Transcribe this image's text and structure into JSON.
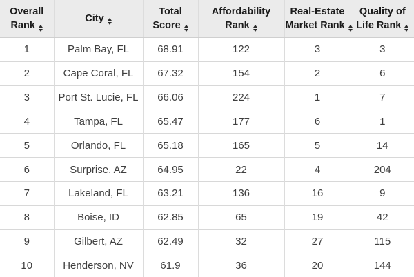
{
  "table": {
    "columns": [
      {
        "id": "overall-rank",
        "label": "Overall Rank",
        "lines": [
          "Overall",
          "Rank"
        ],
        "sortable": true
      },
      {
        "id": "city",
        "label": "City",
        "lines": [
          "City"
        ],
        "sortable": true
      },
      {
        "id": "total-score",
        "label": "Total Score",
        "lines": [
          "Total",
          "Score"
        ],
        "sortable": true
      },
      {
        "id": "affordability-rank",
        "label": "Affordability Rank",
        "lines": [
          "Affordability",
          "Rank"
        ],
        "sortable": true
      },
      {
        "id": "real-estate-market-rank",
        "label": "Real-Estate Market Rank",
        "lines": [
          "Real-Estate",
          "Market Rank"
        ],
        "sortable": true
      },
      {
        "id": "quality-of-life-rank",
        "label": "Quality of Life Rank",
        "lines": [
          "Quality of",
          "Life Rank"
        ],
        "sortable": true
      }
    ],
    "rows": [
      [
        "1",
        "Palm Bay, FL",
        "68.91",
        "122",
        "3",
        "3"
      ],
      [
        "2",
        "Cape Coral, FL",
        "67.32",
        "154",
        "2",
        "6"
      ],
      [
        "3",
        "Port St. Lucie, FL",
        "66.06",
        "224",
        "1",
        "7"
      ],
      [
        "4",
        "Tampa, FL",
        "65.47",
        "177",
        "6",
        "1"
      ],
      [
        "5",
        "Orlando, FL",
        "65.18",
        "165",
        "5",
        "14"
      ],
      [
        "6",
        "Surprise, AZ",
        "64.95",
        "22",
        "4",
        "204"
      ],
      [
        "7",
        "Lakeland, FL",
        "63.21",
        "136",
        "16",
        "9"
      ],
      [
        "8",
        "Boise, ID",
        "62.85",
        "65",
        "19",
        "42"
      ],
      [
        "9",
        "Gilbert, AZ",
        "62.49",
        "32",
        "27",
        "115"
      ],
      [
        "10",
        "Henderson, NV",
        "61.9",
        "36",
        "20",
        "144"
      ]
    ],
    "sort_icon": "sort-both-icon"
  },
  "colors": {
    "header_bg": "#ebebeb",
    "header_text": "#1c1c1c",
    "cell_text": "#3f3f3f",
    "row_border": "#d8d8d8",
    "col_border": "#dcdcdc",
    "icon_color": "#2a2a2a",
    "body_bg": "#ffffff"
  }
}
